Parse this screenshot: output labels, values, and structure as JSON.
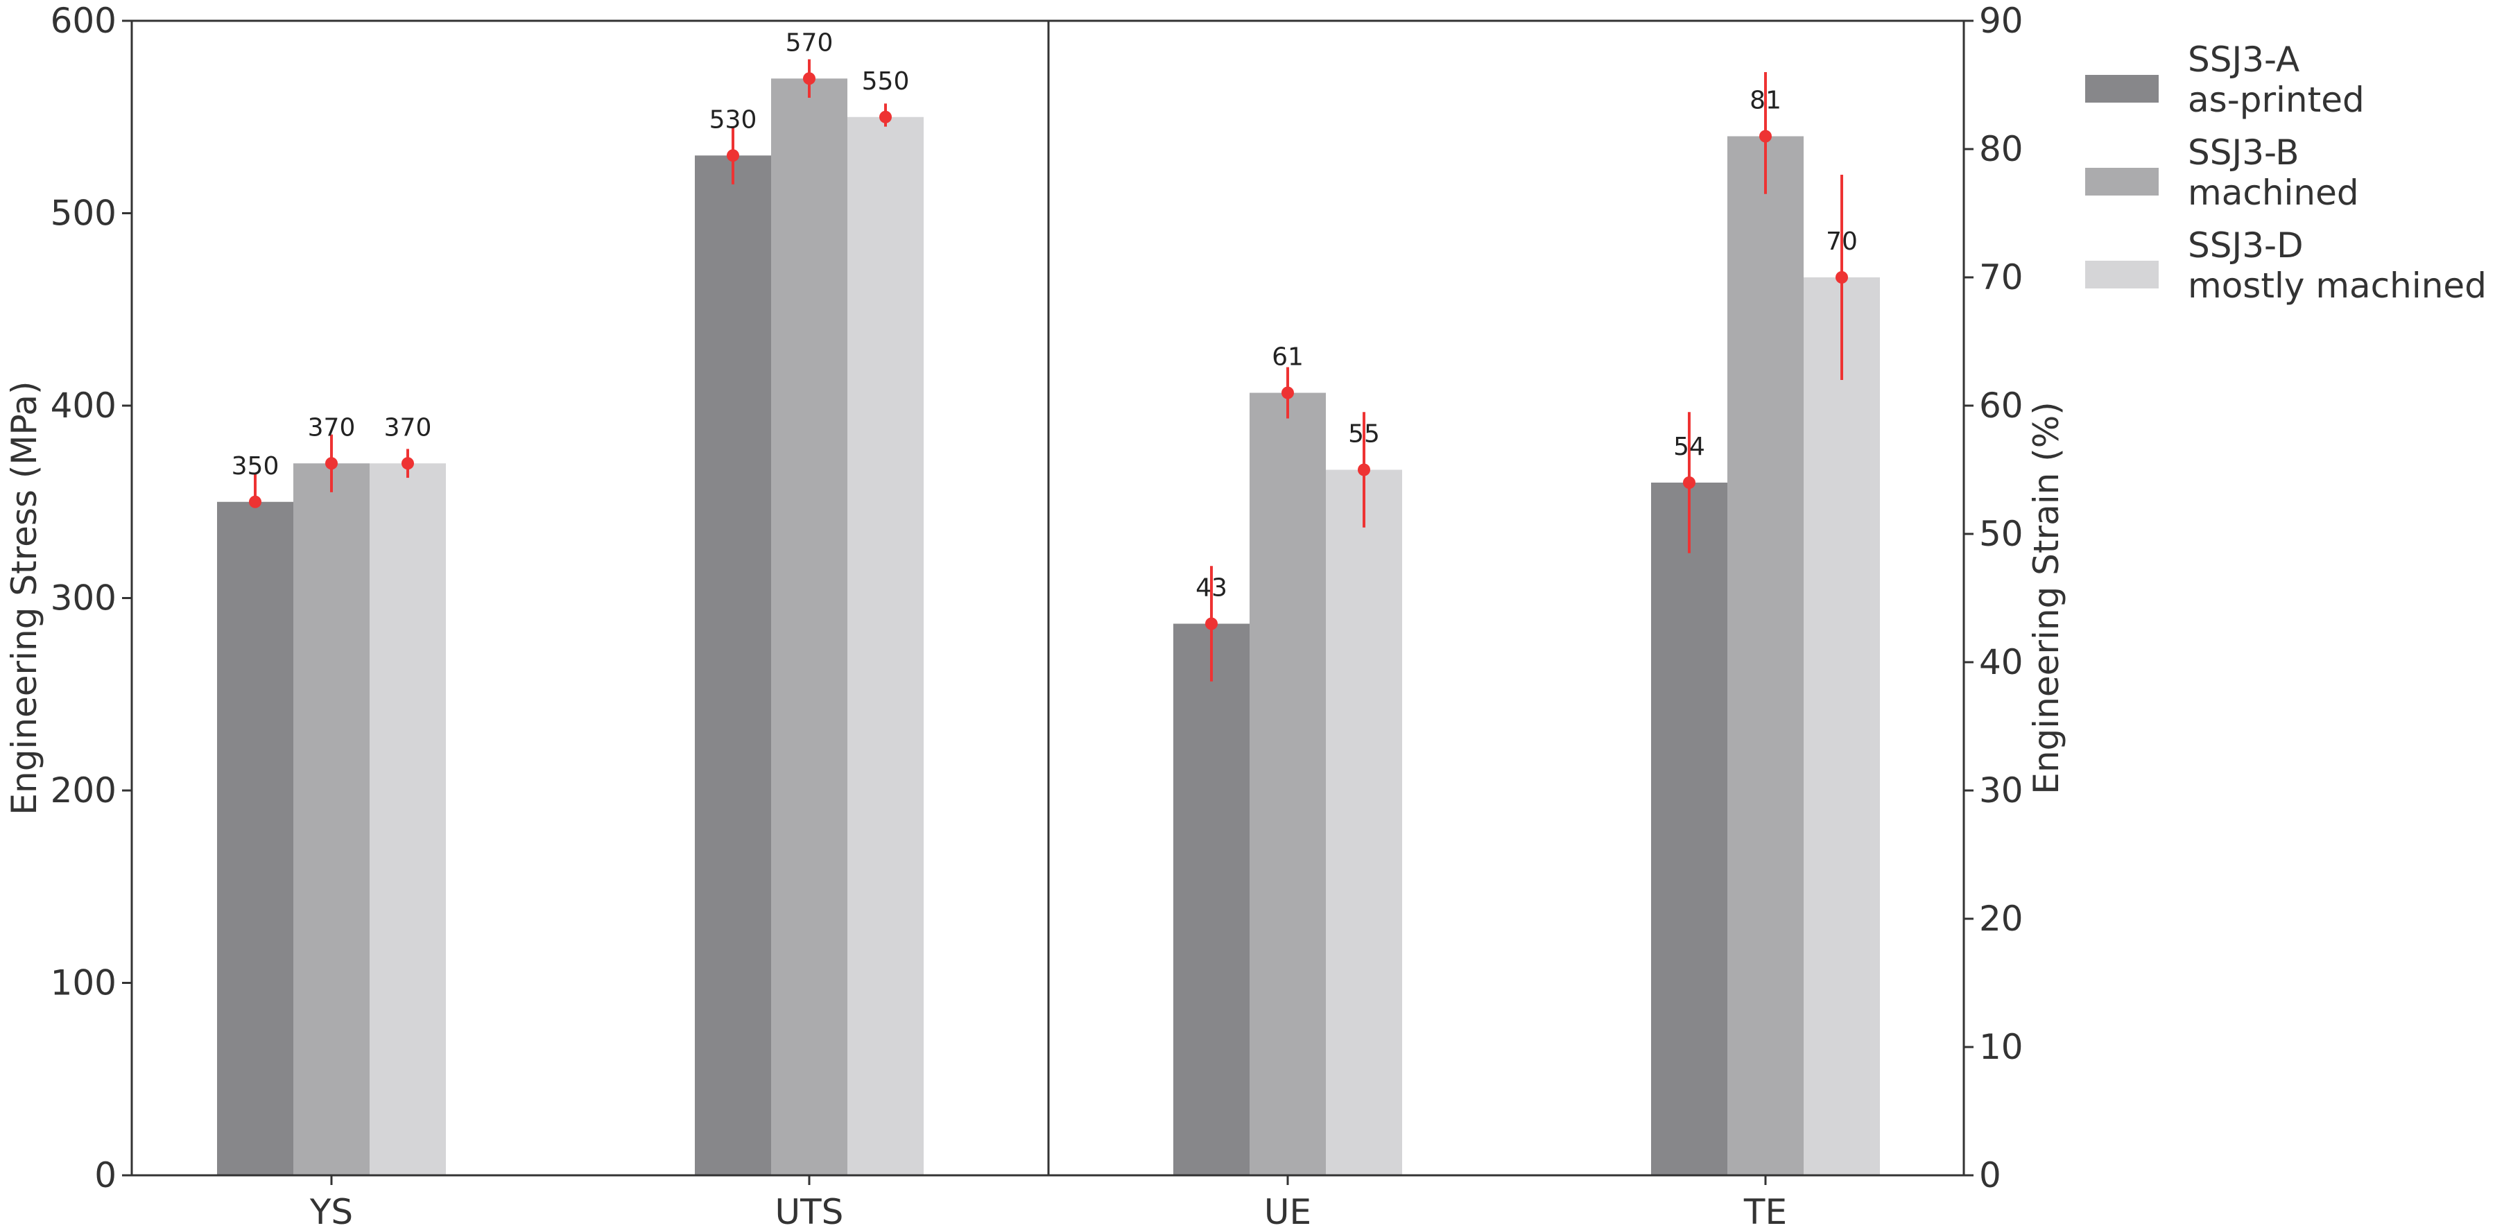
{
  "chart_data": {
    "type": "bar",
    "categories": [
      "YS",
      "UTS",
      "UE",
      "TE"
    ],
    "left_axis": {
      "label": "Engineering Stress (MPa)",
      "ylim": [
        0,
        600
      ],
      "ticks": [
        "0",
        "100",
        "200",
        "300",
        "400",
        "500",
        "600"
      ],
      "applies_to": [
        "YS",
        "UTS"
      ]
    },
    "right_axis": {
      "label": "Engineering Strain (%)",
      "ylim": [
        0,
        90
      ],
      "ticks": [
        "0",
        "10",
        "20",
        "30",
        "40",
        "50",
        "60",
        "70",
        "80",
        "90"
      ],
      "applies_to": [
        "UE",
        "TE"
      ]
    },
    "series": [
      {
        "name": "SSJ3-A\nas-printed",
        "color": "#87878a",
        "values": [
          350,
          530,
          43,
          54
        ],
        "labels": [
          "350",
          "530",
          "43",
          "54"
        ],
        "error_low": [
          349.5,
          515,
          38.5,
          48.5
        ],
        "error_high": [
          364.5,
          545,
          47.5,
          59.5
        ]
      },
      {
        "name": "SSJ3-B\nmachined",
        "color": "#ababad",
        "values": [
          370,
          570,
          61,
          81
        ],
        "labels": [
          "370",
          "570",
          "61",
          "81"
        ],
        "error_low": [
          355,
          560,
          59,
          76.5
        ],
        "error_high": [
          385,
          580,
          63,
          86
        ]
      },
      {
        "name": "SSJ3-D\nmostly machined",
        "color": "#d5d5d7",
        "values": [
          370,
          550,
          55,
          70
        ],
        "labels": [
          "370",
          "550",
          "55",
          "70"
        ],
        "error_low": [
          362.5,
          545,
          50.5,
          62
        ],
        "error_high": [
          377.5,
          557,
          59.5,
          78
        ]
      }
    ],
    "marker_color": "#ee3333",
    "divider_after_category": "UTS",
    "legend_position": "right, outside plot",
    "grid": false
  }
}
